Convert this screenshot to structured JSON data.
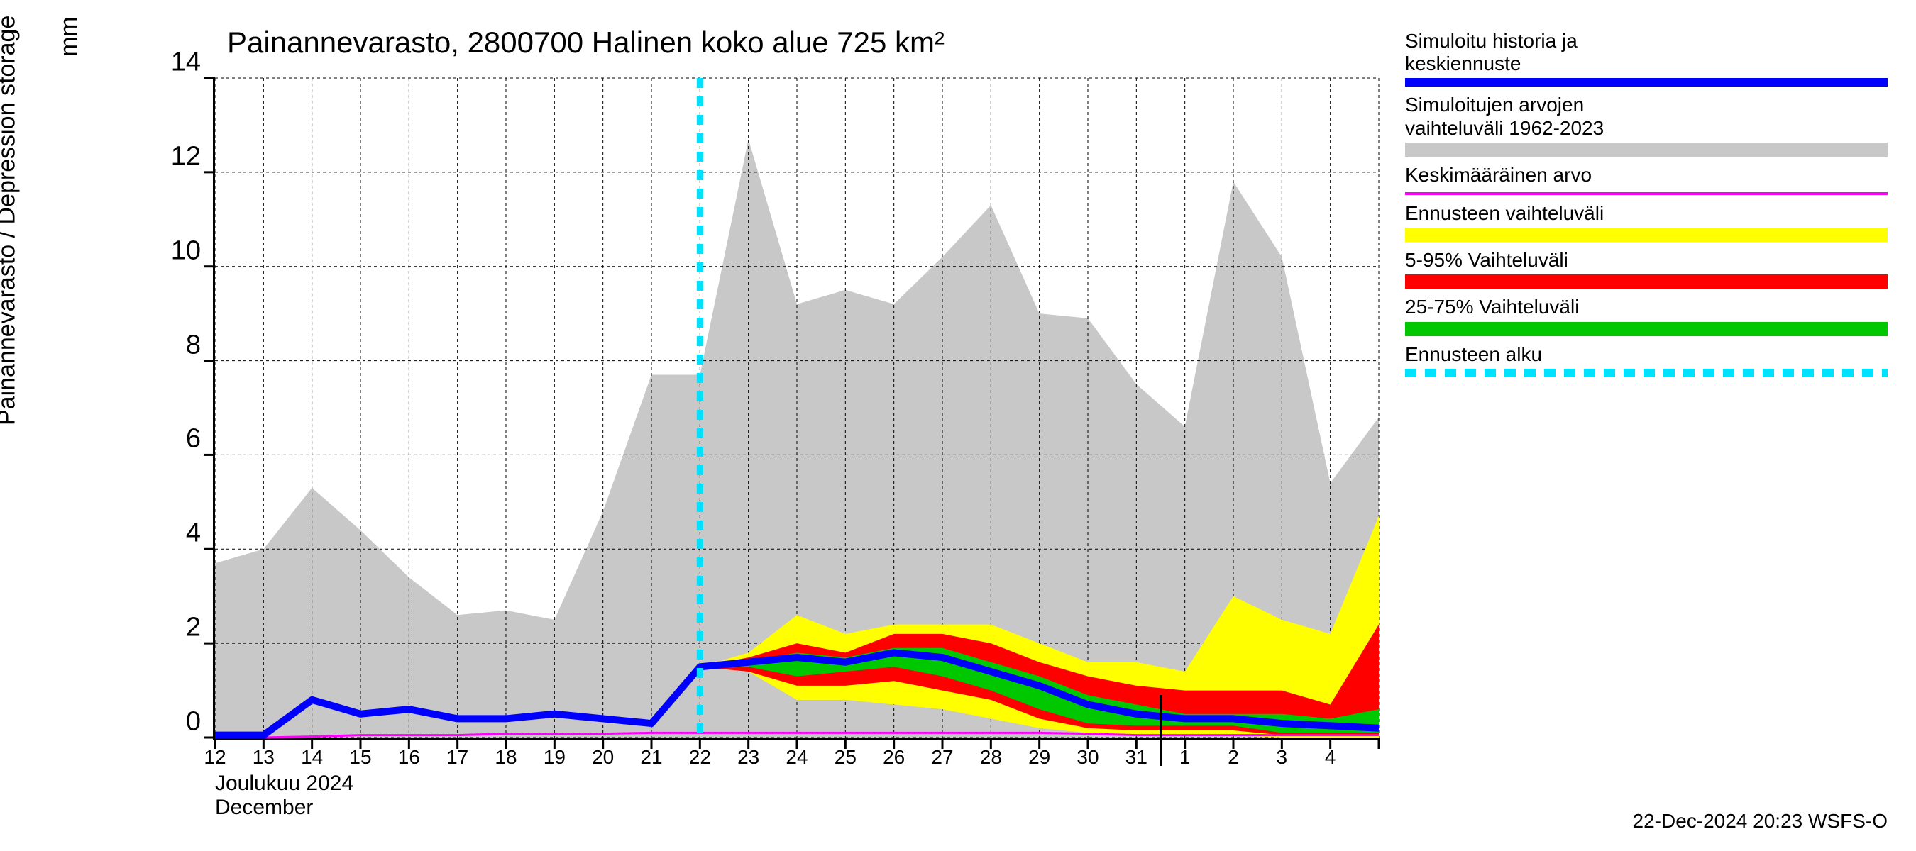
{
  "title": "Painannevarasto, 2800700 Halinen koko alue 725 km²",
  "ylabel": "Painannevarasto / Depression storage",
  "yunit": "mm",
  "month_caption_fi": "Joulukuu  2024",
  "month_caption_en": "December",
  "footer": "22-Dec-2024 20:23 WSFS-O",
  "legend": {
    "sim_hist": [
      "Simuloitu historia ja",
      "keskiennuste"
    ],
    "sim_range": [
      "Simuloitujen arvojen",
      "vaihteluväli 1962-2023"
    ],
    "mean": "Keskimääräinen arvo",
    "fcst_range": "Ennusteen vaihteluväli",
    "p5_95": "5-95% Vaihteluväli",
    "p25_75": "25-75% Vaihteluväli",
    "fcst_start": "Ennusteen alku"
  },
  "chart": {
    "type": "area-line",
    "ylim": [
      0,
      14
    ],
    "yticks": [
      0,
      2,
      4,
      6,
      8,
      10,
      12,
      14
    ],
    "x_dates": [
      "12",
      "13",
      "14",
      "15",
      "16",
      "17",
      "18",
      "19",
      "20",
      "21",
      "22",
      "23",
      "24",
      "25",
      "26",
      "27",
      "28",
      "29",
      "30",
      "31",
      "1",
      "2",
      "3",
      "4"
    ],
    "n_points": 25,
    "forecast_start_index": 10,
    "month_boundary_index": 20,
    "background_color": "#ffffff",
    "grid_color": "#000000",
    "grid_dash": "4,4",
    "colors": {
      "gray_band": "#c8c8c8",
      "yellow_band": "#ffff00",
      "red_band": "#ff0000",
      "green_band": "#00c800",
      "blue_line": "#0000ff",
      "magenta_line": "#ff00ff",
      "cyan_dash": "#00e0ff"
    },
    "line_width_blue": 10,
    "line_width_magenta": 3,
    "line_width_cyan": 9,
    "gray_upper": [
      3.7,
      4.0,
      5.3,
      4.4,
      3.4,
      2.6,
      2.7,
      2.5,
      4.8,
      7.7,
      7.7,
      12.7,
      9.2,
      9.5,
      9.2,
      10.2,
      11.3,
      9.0,
      8.9,
      7.5,
      6.6,
      11.8,
      10.2,
      5.4,
      6.8
    ],
    "gray_lower": [
      0,
      0,
      0,
      0,
      0,
      0,
      0,
      0,
      0,
      0,
      0,
      0,
      0,
      0,
      0,
      0,
      0,
      0,
      0,
      0,
      0,
      0,
      0,
      0,
      0
    ],
    "yellow_upper": [
      0,
      0,
      0,
      0,
      0,
      0,
      0,
      0,
      0,
      0,
      1.5,
      1.8,
      2.6,
      2.2,
      2.4,
      2.4,
      2.4,
      2.0,
      1.6,
      1.6,
      1.4,
      3.0,
      2.5,
      2.2,
      4.7
    ],
    "yellow_lower": [
      0,
      0,
      0,
      0,
      0,
      0,
      0,
      0,
      0,
      0,
      1.5,
      1.4,
      0.8,
      0.8,
      0.7,
      0.6,
      0.4,
      0.2,
      0.1,
      0.05,
      0.05,
      0.05,
      0.0,
      0.0,
      0.0
    ],
    "red_upper": [
      0,
      0,
      0,
      0,
      0,
      0,
      0,
      0,
      0,
      0,
      1.5,
      1.7,
      2.0,
      1.8,
      2.2,
      2.2,
      2.0,
      1.6,
      1.3,
      1.1,
      1.0,
      1.0,
      1.0,
      0.7,
      2.4
    ],
    "red_lower": [
      0,
      0,
      0,
      0,
      0,
      0,
      0,
      0,
      0,
      0,
      1.5,
      1.4,
      1.1,
      1.1,
      1.2,
      1.0,
      0.8,
      0.4,
      0.2,
      0.15,
      0.15,
      0.15,
      0.05,
      0.05,
      0.05
    ],
    "green_upper": [
      0,
      0,
      0,
      0,
      0,
      0,
      0,
      0,
      0,
      0,
      1.5,
      1.6,
      1.8,
      1.7,
      1.9,
      1.9,
      1.6,
      1.3,
      0.9,
      0.7,
      0.5,
      0.5,
      0.5,
      0.4,
      0.6
    ],
    "green_lower": [
      0,
      0,
      0,
      0,
      0,
      0,
      0,
      0,
      0,
      0,
      1.5,
      1.5,
      1.3,
      1.4,
      1.5,
      1.3,
      1.0,
      0.6,
      0.3,
      0.25,
      0.25,
      0.25,
      0.1,
      0.1,
      0.1
    ],
    "blue_line": [
      0.05,
      0.05,
      0.8,
      0.5,
      0.6,
      0.4,
      0.4,
      0.5,
      0.4,
      0.3,
      1.5,
      1.6,
      1.7,
      1.6,
      1.8,
      1.7,
      1.4,
      1.1,
      0.7,
      0.5,
      0.4,
      0.4,
      0.3,
      0.25,
      0.2
    ],
    "magenta_line": [
      0.0,
      0.0,
      0.02,
      0.05,
      0.05,
      0.05,
      0.08,
      0.08,
      0.08,
      0.1,
      0.1,
      0.1,
      0.1,
      0.1,
      0.1,
      0.1,
      0.1,
      0.1,
      0.08,
      0.05,
      0.05,
      0.05,
      0.05,
      0.05,
      0.05
    ]
  }
}
